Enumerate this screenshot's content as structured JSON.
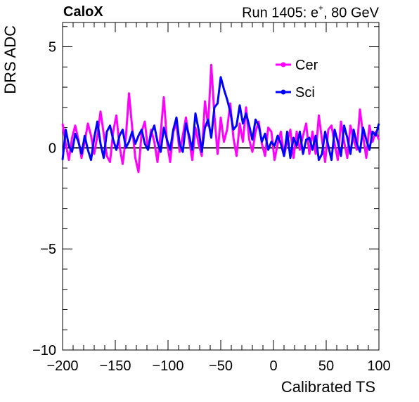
{
  "header": {
    "left_label": "CaloX",
    "right_prefix": "Run 1405: e",
    "right_sup": "+",
    "right_suffix": ", 80 GeV"
  },
  "chart_data": {
    "type": "line",
    "title": "",
    "xlabel": "Calibrated TS",
    "ylabel": "DRS ADC",
    "xlim": [
      -200,
      100
    ],
    "ylim": [
      -10,
      6.2
    ],
    "x_ticks": [
      -200,
      -150,
      -100,
      -50,
      0,
      50,
      100
    ],
    "x_tick_labels": [
      "−200",
      "−150",
      "−100",
      "−50",
      "0",
      "50",
      "100"
    ],
    "y_ticks": [
      -10,
      -5,
      0,
      5
    ],
    "y_tick_labels": [
      "−10",
      "−5",
      "0",
      "5"
    ],
    "grid": false,
    "zero_line": true,
    "legend_position": "top-right",
    "series": [
      {
        "name": "Cer",
        "color": "#ff00ff",
        "x": [
          -200,
          -197,
          -194,
          -191,
          -188,
          -185,
          -182,
          -179,
          -176,
          -173,
          -170,
          -167,
          -164,
          -161,
          -158,
          -155,
          -152,
          -149,
          -146,
          -143,
          -140,
          -137,
          -134,
          -131,
          -128,
          -125,
          -122,
          -119,
          -116,
          -113,
          -110,
          -107,
          -104,
          -101,
          -98,
          -95,
          -92,
          -89,
          -86,
          -83,
          -80,
          -77,
          -74,
          -71,
          -68,
          -65,
          -62,
          -59,
          -56,
          -53,
          -50,
          -47,
          -44,
          -41,
          -38,
          -35,
          -32,
          -29,
          -26,
          -23,
          -20,
          -17,
          -14,
          -11,
          -8,
          -5,
          -2,
          1,
          4,
          7,
          10,
          13,
          16,
          19,
          22,
          25,
          28,
          31,
          34,
          37,
          40,
          43,
          46,
          49,
          52,
          55,
          58,
          61,
          64,
          67,
          70,
          73,
          76,
          79,
          82,
          85,
          88,
          91,
          94,
          97,
          100
        ],
        "values": [
          1.2,
          0.2,
          -0.6,
          0.5,
          1.1,
          0.4,
          -0.5,
          0.3,
          1.2,
          0.6,
          -0.3,
          0.6,
          1.8,
          0.7,
          -0.4,
          -0.7,
          0.8,
          1.6,
          0.1,
          -0.8,
          0.5,
          2.7,
          1.0,
          -0.5,
          -1.2,
          0.8,
          1.3,
          -0.1,
          0.9,
          0.3,
          -0.7,
          0.7,
          2.5,
          0.3,
          -0.7,
          0.8,
          1.2,
          -0.2,
          0.6,
          1.5,
          0.4,
          -0.6,
          1.0,
          0.2,
          -0.4,
          2.3,
          1.1,
          4.1,
          1.6,
          -0.3,
          1.5,
          0.3,
          0.9,
          2.2,
          0.5,
          -0.4,
          1.2,
          0.3,
          2.0,
          0.4,
          -0.2,
          0.8,
          1.3,
          0.2,
          -0.4,
          1.0,
          0.8,
          -0.6,
          0.2,
          0.8,
          -0.4,
          0.3,
          0.9,
          -0.5,
          0.8,
          -0.1,
          0.6,
          1.2,
          -0.3,
          0.8,
          -0.3,
          1.6,
          0.4,
          -0.7,
          0.9,
          1.1,
          0.2,
          -0.6,
          1.3,
          0.3,
          -0.5,
          1.1,
          0.4,
          -0.1,
          1.9,
          0.6,
          -0.5,
          1.1,
          0.3,
          0.8,
          0.4
        ]
      },
      {
        "name": "Sci",
        "color": "#0000ff",
        "x": [
          -200,
          -197,
          -194,
          -191,
          -188,
          -185,
          -182,
          -179,
          -176,
          -173,
          -170,
          -167,
          -164,
          -161,
          -158,
          -155,
          -152,
          -149,
          -146,
          -143,
          -140,
          -137,
          -134,
          -131,
          -128,
          -125,
          -122,
          -119,
          -116,
          -113,
          -110,
          -107,
          -104,
          -101,
          -98,
          -95,
          -92,
          -89,
          -86,
          -83,
          -80,
          -77,
          -74,
          -71,
          -68,
          -65,
          -62,
          -59,
          -56,
          -53,
          -50,
          -47,
          -44,
          -41,
          -38,
          -35,
          -32,
          -29,
          -26,
          -23,
          -20,
          -17,
          -14,
          -11,
          -8,
          -5,
          -2,
          1,
          4,
          7,
          10,
          13,
          16,
          19,
          22,
          25,
          28,
          31,
          34,
          37,
          40,
          43,
          46,
          49,
          52,
          55,
          58,
          61,
          64,
          67,
          70,
          73,
          76,
          79,
          82,
          85,
          88,
          91,
          94,
          97,
          100
        ],
        "values": [
          -0.6,
          0.9,
          0.1,
          -0.2,
          0.7,
          0.3,
          -0.3,
          0.6,
          -0.1,
          -0.6,
          0.5,
          1.3,
          0.2,
          -0.5,
          0.8,
          1.1,
          0.4,
          -0.1,
          0.6,
          0.9,
          0.0,
          0.3,
          0.8,
          0.2,
          0.6,
          0.9,
          0.2,
          -0.1,
          0.7,
          1.1,
          0.3,
          -0.2,
          1.0,
          0.4,
          -0.1,
          0.9,
          1.5,
          0.2,
          -0.2,
          1.2,
          0.6,
          -0.1,
          1.7,
          0.9,
          -0.2,
          1.0,
          1.4,
          0.5,
          2.0,
          2.2,
          3.5,
          2.9,
          2.4,
          1.8,
          0.9,
          1.1,
          2.1,
          1.2,
          1.7,
          1.1,
          0.4,
          1.4,
          1.1,
          0.3,
          0.7,
          -0.1,
          0.3,
          0.1,
          0.6,
          0.2,
          -0.4,
          0.8,
          -0.5,
          0.5,
          0.1,
          0.8,
          -0.3,
          0.4,
          0.5,
          -0.1,
          0.6,
          -0.6,
          -0.3,
          0.8,
          0.1,
          -0.6,
          0.9,
          0.3,
          -0.4,
          1.1,
          0.5,
          -0.3,
          0.9,
          0.2,
          -0.2,
          1.0,
          0.4,
          -0.1,
          0.8,
          0.6,
          1.2
        ]
      }
    ]
  }
}
